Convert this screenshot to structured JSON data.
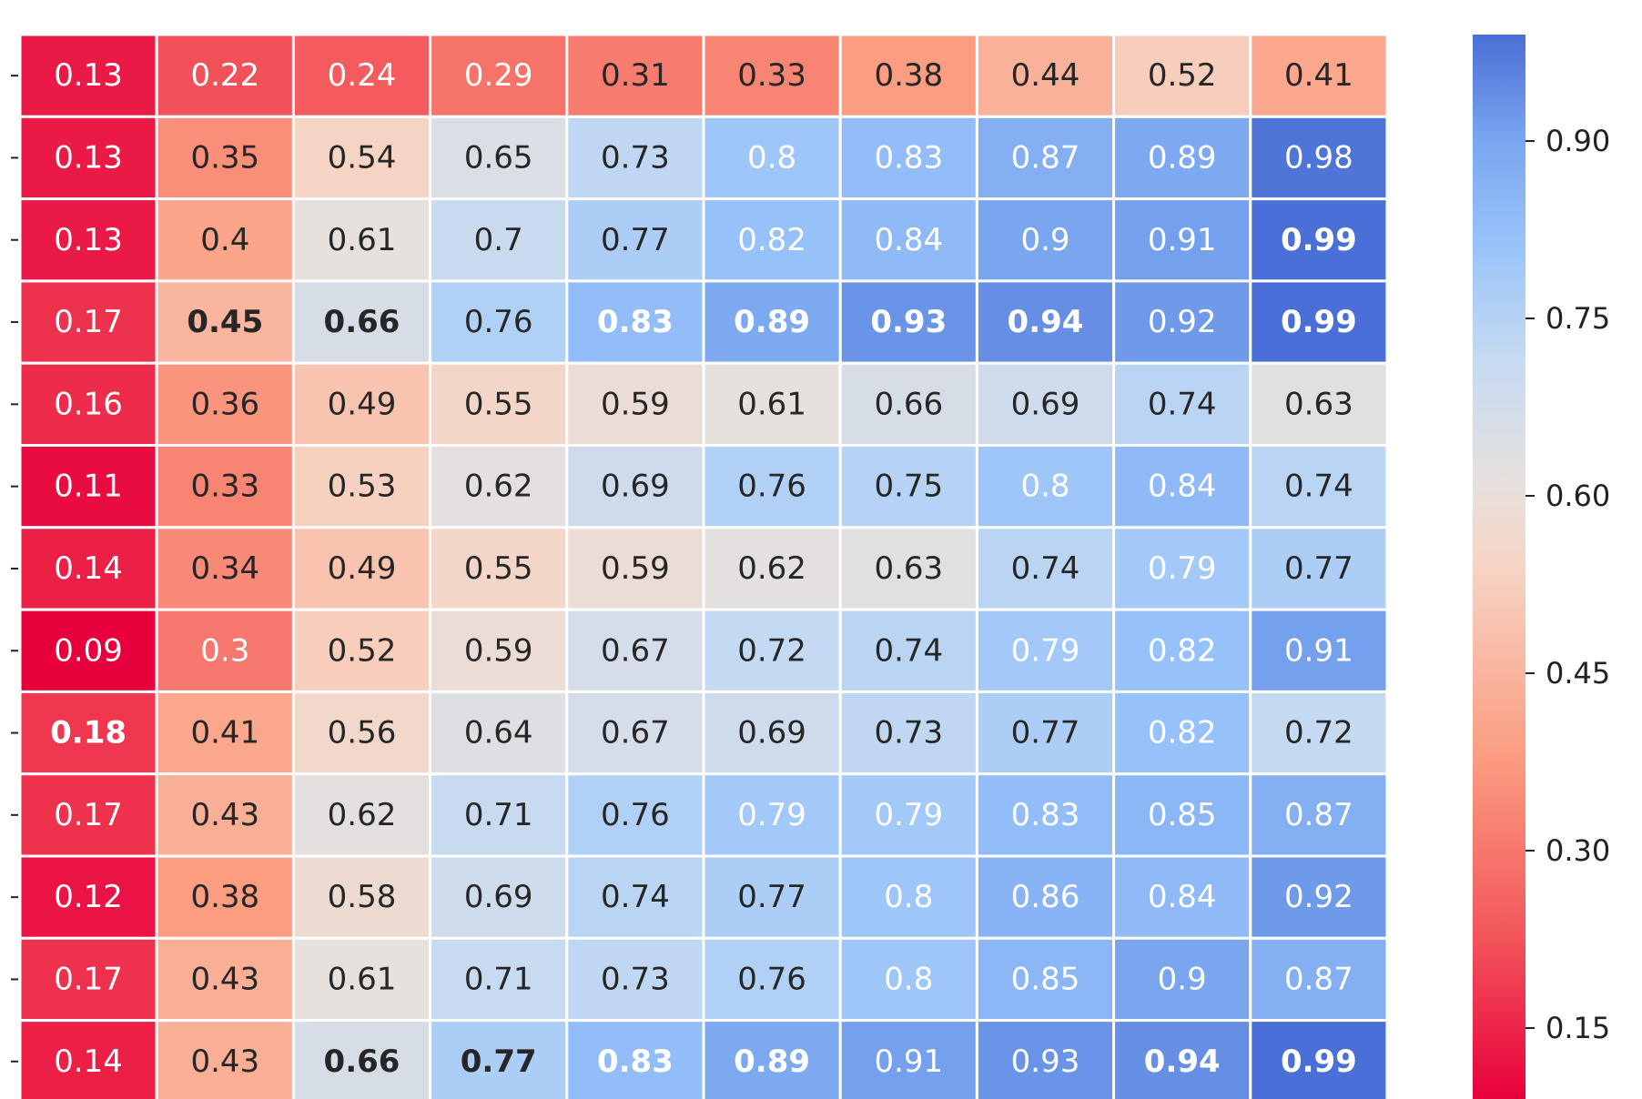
{
  "chart_data": {
    "type": "heatmap",
    "title": "",
    "xlabel": "",
    "ylabel": "",
    "row_labels": [
      "",
      "",
      "",
      "",
      "",
      "",
      "",
      "",
      "",
      "",
      "",
      "",
      ""
    ],
    "col_labels": [
      "",
      "",
      "",
      "",
      "",
      "",
      "",
      "",
      "",
      ""
    ],
    "values": [
      [
        0.13,
        0.22,
        0.24,
        0.29,
        0.31,
        0.33,
        0.38,
        0.44,
        0.52,
        0.41
      ],
      [
        0.13,
        0.35,
        0.54,
        0.65,
        0.73,
        0.8,
        0.83,
        0.87,
        0.89,
        0.98
      ],
      [
        0.13,
        0.4,
        0.61,
        0.7,
        0.77,
        0.82,
        0.84,
        0.9,
        0.91,
        0.99
      ],
      [
        0.17,
        0.45,
        0.66,
        0.76,
        0.83,
        0.89,
        0.93,
        0.94,
        0.92,
        0.99
      ],
      [
        0.16,
        0.36,
        0.49,
        0.55,
        0.59,
        0.61,
        0.66,
        0.69,
        0.74,
        0.63
      ],
      [
        0.11,
        0.33,
        0.53,
        0.62,
        0.69,
        0.76,
        0.75,
        0.8,
        0.84,
        0.74
      ],
      [
        0.14,
        0.34,
        0.49,
        0.55,
        0.59,
        0.62,
        0.63,
        0.74,
        0.79,
        0.77
      ],
      [
        0.09,
        0.3,
        0.52,
        0.59,
        0.67,
        0.72,
        0.74,
        0.79,
        0.82,
        0.91
      ],
      [
        0.18,
        0.41,
        0.56,
        0.64,
        0.67,
        0.69,
        0.73,
        0.77,
        0.82,
        0.72
      ],
      [
        0.17,
        0.43,
        0.62,
        0.71,
        0.76,
        0.79,
        0.79,
        0.83,
        0.85,
        0.87
      ],
      [
        0.12,
        0.38,
        0.58,
        0.69,
        0.74,
        0.77,
        0.8,
        0.86,
        0.84,
        0.92
      ],
      [
        0.17,
        0.43,
        0.61,
        0.71,
        0.73,
        0.76,
        0.8,
        0.85,
        0.9,
        0.87
      ],
      [
        0.14,
        0.43,
        0.66,
        0.77,
        0.83,
        0.89,
        0.91,
        0.93,
        0.94,
        0.99
      ]
    ],
    "bold_cells": [
      [
        3,
        1
      ],
      [
        3,
        2
      ],
      [
        3,
        4
      ],
      [
        3,
        5
      ],
      [
        3,
        6
      ],
      [
        3,
        7
      ],
      [
        3,
        9
      ],
      [
        2,
        9
      ],
      [
        8,
        0
      ],
      [
        12,
        2
      ],
      [
        12,
        3
      ],
      [
        12,
        4
      ],
      [
        12,
        5
      ],
      [
        12,
        8
      ],
      [
        12,
        9
      ]
    ],
    "white_text_cells": [
      [
        0,
        0
      ],
      [
        0,
        1
      ],
      [
        0,
        2
      ],
      [
        0,
        3
      ],
      [
        1,
        0
      ],
      [
        1,
        5
      ],
      [
        1,
        6
      ],
      [
        1,
        7
      ],
      [
        1,
        8
      ],
      [
        1,
        9
      ],
      [
        2,
        0
      ],
      [
        2,
        5
      ],
      [
        2,
        6
      ],
      [
        2,
        7
      ],
      [
        2,
        8
      ],
      [
        2,
        9
      ],
      [
        3,
        0
      ],
      [
        3,
        4
      ],
      [
        3,
        5
      ],
      [
        3,
        6
      ],
      [
        3,
        7
      ],
      [
        3,
        8
      ],
      [
        3,
        9
      ],
      [
        4,
        0
      ],
      [
        5,
        0
      ],
      [
        5,
        7
      ],
      [
        5,
        8
      ],
      [
        6,
        0
      ],
      [
        6,
        8
      ],
      [
        7,
        0
      ],
      [
        7,
        1
      ],
      [
        7,
        7
      ],
      [
        7,
        8
      ],
      [
        7,
        9
      ],
      [
        8,
        0
      ],
      [
        8,
        8
      ],
      [
        9,
        0
      ],
      [
        9,
        5
      ],
      [
        9,
        6
      ],
      [
        9,
        7
      ],
      [
        9,
        8
      ],
      [
        9,
        9
      ],
      [
        10,
        0
      ],
      [
        10,
        6
      ],
      [
        10,
        7
      ],
      [
        10,
        8
      ],
      [
        10,
        9
      ],
      [
        11,
        0
      ],
      [
        11,
        6
      ],
      [
        11,
        7
      ],
      [
        11,
        8
      ],
      [
        11,
        9
      ],
      [
        12,
        0
      ],
      [
        12,
        4
      ],
      [
        12,
        5
      ],
      [
        12,
        6
      ],
      [
        12,
        7
      ],
      [
        12,
        8
      ],
      [
        12,
        9
      ]
    ],
    "colormap": "coolwarm_r",
    "colorbar": {
      "range": [
        0.09,
        0.99
      ],
      "ticks": [
        0.15,
        0.3,
        0.45,
        0.6,
        0.75,
        0.9
      ],
      "tick_labels": [
        "0.15",
        "0.30",
        "0.45",
        "0.60",
        "0.75",
        "0.90"
      ]
    },
    "grid": true
  }
}
